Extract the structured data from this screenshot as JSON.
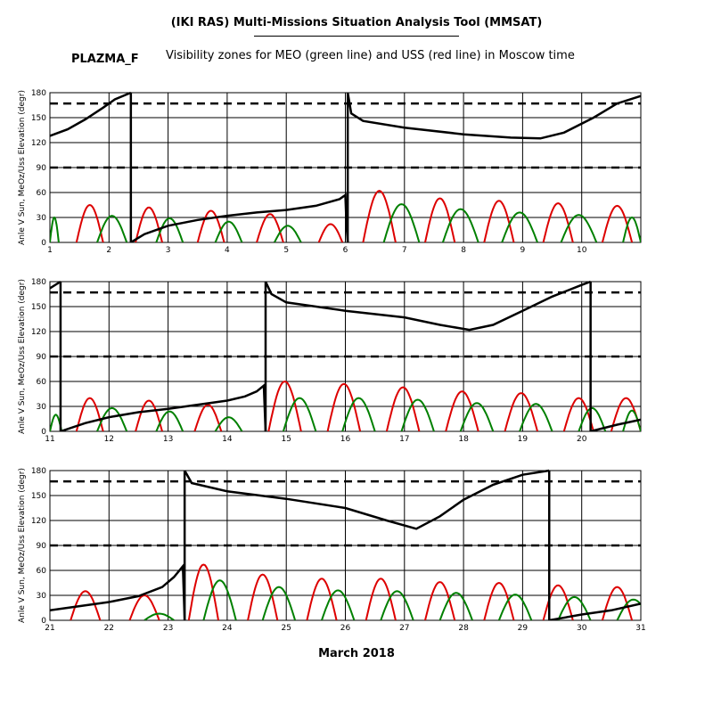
{
  "header": {
    "title": "(IKI RAS) Multi-Missions Situation Analysis Tool (MMSAT)",
    "mission": "PLAZMA_F",
    "subtitle": "Visibility zones for MEO (green line) and USS (red line) in Moscow time"
  },
  "footer": {
    "month_label": "March 2018"
  },
  "colors": {
    "meo": "#008000",
    "uss": "#dd0000",
    "sun_angle": "#000000",
    "grid": "#000000"
  },
  "chart_data": [
    {
      "type": "line",
      "ylabel": "Anle V Sun, MeOz/Uss Elevation (degr)",
      "xlim": [
        1,
        11
      ],
      "ylim": [
        0,
        180
      ],
      "x_ticks": [
        1,
        2,
        3,
        4,
        5,
        6,
        7,
        8,
        9,
        10
      ],
      "y_ticks": [
        0,
        30,
        60,
        90,
        120,
        150,
        180
      ],
      "thresholds": [
        90,
        167
      ],
      "grid": true,
      "sun_angle": [
        [
          [
            1.0,
            128
          ],
          [
            1.3,
            136
          ],
          [
            1.6,
            148
          ],
          [
            1.9,
            162
          ],
          [
            2.1,
            172
          ],
          [
            2.37,
            180
          ]
        ],
        [
          [
            2.37,
            0
          ],
          [
            2.6,
            10
          ],
          [
            3.0,
            20
          ],
          [
            3.5,
            27
          ],
          [
            4.0,
            32
          ],
          [
            4.5,
            36
          ],
          [
            5.0,
            39
          ],
          [
            5.5,
            44
          ],
          [
            5.9,
            52
          ],
          [
            6.0,
            57
          ],
          [
            6.02,
            20
          ],
          [
            6.04,
            0
          ]
        ],
        [
          [
            6.04,
            180
          ],
          [
            6.1,
            155
          ],
          [
            6.3,
            146
          ],
          [
            7.0,
            138
          ],
          [
            8.0,
            130
          ],
          [
            8.8,
            126
          ],
          [
            9.3,
            125
          ],
          [
            9.7,
            132
          ],
          [
            10.2,
            150
          ],
          [
            10.6,
            167
          ],
          [
            11.0,
            176
          ]
        ]
      ],
      "uss_passes": [
        [
          1.45,
          1.9,
          45
        ],
        [
          2.45,
          2.9,
          42
        ],
        [
          3.5,
          3.95,
          38
        ],
        [
          4.5,
          4.95,
          34
        ],
        [
          5.55,
          5.95,
          22
        ],
        [
          6.3,
          6.85,
          62
        ],
        [
          7.35,
          7.85,
          53
        ],
        [
          8.35,
          8.85,
          50
        ],
        [
          9.35,
          9.85,
          47
        ],
        [
          10.35,
          10.85,
          44
        ]
      ],
      "meo_passes": [
        [
          1.0,
          1.15,
          30
        ],
        [
          1.8,
          2.3,
          32
        ],
        [
          2.8,
          3.25,
          29
        ],
        [
          3.8,
          4.25,
          25
        ],
        [
          4.8,
          5.25,
          20
        ],
        [
          6.65,
          7.25,
          46
        ],
        [
          7.65,
          8.25,
          40
        ],
        [
          8.65,
          9.25,
          36
        ],
        [
          9.65,
          10.25,
          33
        ],
        [
          10.7,
          11.0,
          30
        ]
      ]
    },
    {
      "type": "line",
      "ylabel": "Anle V Sun, MeOz/Uss Elevation (degr)",
      "xlim": [
        11,
        21
      ],
      "ylim": [
        0,
        180
      ],
      "x_ticks": [
        11,
        12,
        13,
        14,
        15,
        16,
        17,
        18,
        19,
        20
      ],
      "y_ticks": [
        0,
        30,
        60,
        90,
        120,
        150,
        180
      ],
      "thresholds": [
        90,
        167
      ],
      "grid": true,
      "sun_angle": [
        [
          [
            11.0,
            172
          ],
          [
            11.18,
            180
          ]
        ],
        [
          [
            11.18,
            0
          ],
          [
            11.6,
            10
          ],
          [
            12.0,
            17
          ],
          [
            12.5,
            23
          ],
          [
            13.0,
            27
          ],
          [
            13.5,
            32
          ],
          [
            14.0,
            37
          ],
          [
            14.3,
            42
          ],
          [
            14.5,
            48
          ],
          [
            14.62,
            55
          ],
          [
            14.65,
            0
          ]
        ],
        [
          [
            14.65,
            180
          ],
          [
            14.75,
            165
          ],
          [
            15.0,
            155
          ],
          [
            16.0,
            145
          ],
          [
            17.0,
            137
          ],
          [
            17.6,
            128
          ],
          [
            18.1,
            122
          ],
          [
            18.5,
            128
          ],
          [
            19.0,
            145
          ],
          [
            19.5,
            162
          ],
          [
            20.0,
            176
          ],
          [
            20.15,
            180
          ]
        ],
        [
          [
            20.15,
            0
          ],
          [
            20.6,
            8
          ],
          [
            21.0,
            14
          ]
        ]
      ],
      "uss_passes": [
        [
          11.45,
          11.9,
          40
        ],
        [
          12.45,
          12.9,
          37
        ],
        [
          13.45,
          13.9,
          32
        ],
        [
          14.7,
          15.25,
          60
        ],
        [
          15.7,
          16.25,
          57
        ],
        [
          16.7,
          17.25,
          53
        ],
        [
          17.7,
          18.25,
          48
        ],
        [
          18.7,
          19.25,
          46
        ],
        [
          19.7,
          20.2,
          40
        ],
        [
          20.5,
          21.0,
          40
        ]
      ],
      "meo_passes": [
        [
          11.0,
          11.2,
          20
        ],
        [
          11.8,
          12.3,
          28
        ],
        [
          12.8,
          13.25,
          24
        ],
        [
          13.8,
          14.25,
          17
        ],
        [
          14.95,
          15.5,
          40
        ],
        [
          15.95,
          16.5,
          40
        ],
        [
          16.95,
          17.5,
          38
        ],
        [
          17.95,
          18.5,
          34
        ],
        [
          18.95,
          19.5,
          33
        ],
        [
          19.95,
          20.4,
          28
        ],
        [
          20.7,
          21.0,
          25
        ]
      ]
    },
    {
      "type": "line",
      "ylabel": "Anle V Sun, MeOz/Uss Elevation (degr)",
      "xlim": [
        21,
        31
      ],
      "ylim": [
        0,
        180
      ],
      "x_ticks": [
        21,
        22,
        23,
        24,
        25,
        26,
        27,
        28,
        29,
        30,
        31
      ],
      "y_ticks": [
        0,
        30,
        60,
        90,
        120,
        150,
        180
      ],
      "thresholds": [
        90,
        167
      ],
      "grid": true,
      "sun_angle": [
        [
          [
            21.0,
            12
          ],
          [
            21.5,
            17
          ],
          [
            22.0,
            22
          ],
          [
            22.5,
            29
          ],
          [
            22.9,
            40
          ],
          [
            23.1,
            52
          ],
          [
            23.25,
            65
          ],
          [
            23.28,
            0
          ]
        ],
        [
          [
            23.28,
            180
          ],
          [
            23.4,
            165
          ],
          [
            24.0,
            155
          ],
          [
            25.0,
            146
          ],
          [
            26.0,
            135
          ],
          [
            26.7,
            120
          ],
          [
            27.2,
            110
          ],
          [
            27.6,
            125
          ],
          [
            28.0,
            145
          ],
          [
            28.5,
            163
          ],
          [
            29.0,
            175
          ],
          [
            29.45,
            180
          ]
        ],
        [
          [
            29.45,
            0
          ],
          [
            30.0,
            7
          ],
          [
            30.5,
            12
          ],
          [
            31.0,
            20
          ],
          [
            31.6,
            35
          ],
          [
            31.8,
            45
          ],
          [
            31.95,
            65
          ],
          [
            32.0,
            76
          ]
        ]
      ],
      "uss_passes": [
        [
          21.35,
          21.85,
          35
        ],
        [
          22.35,
          22.85,
          30
        ],
        [
          23.35,
          23.85,
          67
        ],
        [
          24.35,
          24.85,
          55
        ],
        [
          25.35,
          25.85,
          50
        ],
        [
          26.35,
          26.85,
          50
        ],
        [
          27.35,
          27.85,
          46
        ],
        [
          28.35,
          28.85,
          45
        ],
        [
          29.35,
          29.85,
          42
        ],
        [
          30.35,
          30.85,
          40
        ],
        [
          31.45,
          32.0,
          30
        ]
      ],
      "meo_passes": [
        [
          22.6,
          23.1,
          8
        ],
        [
          23.6,
          24.15,
          48
        ],
        [
          24.6,
          25.15,
          40
        ],
        [
          25.6,
          26.15,
          36
        ],
        [
          26.6,
          27.15,
          35
        ],
        [
          27.6,
          28.15,
          33
        ],
        [
          28.6,
          29.15,
          31
        ],
        [
          29.6,
          30.15,
          28
        ],
        [
          30.6,
          31.15,
          25
        ]
      ]
    }
  ]
}
